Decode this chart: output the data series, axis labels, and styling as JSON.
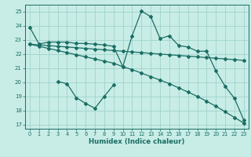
{
  "xlabel": "Humidex (Indice chaleur)",
  "bg_color": "#c8ece6",
  "grid_color": "#a0d4cc",
  "line_color": "#1a6e64",
  "xlim": [
    -0.5,
    23.5
  ],
  "ylim": [
    16.7,
    25.5
  ],
  "yticks": [
    17,
    18,
    19,
    20,
    21,
    22,
    23,
    24,
    25
  ],
  "xticks": [
    0,
    1,
    2,
    3,
    4,
    5,
    6,
    7,
    8,
    9,
    10,
    11,
    12,
    13,
    14,
    15,
    16,
    17,
    18,
    19,
    20,
    21,
    22,
    23
  ],
  "line1_x": [
    0,
    1,
    2,
    3,
    4,
    5,
    6,
    7,
    8,
    9,
    10,
    11,
    12,
    13,
    14,
    15,
    16,
    17,
    18,
    19,
    20,
    21,
    22,
    23
  ],
  "line1_y": [
    23.9,
    22.7,
    22.85,
    22.85,
    22.85,
    22.75,
    22.75,
    22.7,
    22.65,
    22.55,
    21.1,
    23.3,
    25.05,
    24.65,
    23.1,
    23.3,
    22.6,
    22.5,
    22.2,
    22.2,
    20.8,
    19.7,
    18.85,
    17.3
  ],
  "line2_x": [
    0,
    1,
    2,
    3,
    4,
    5,
    6,
    7,
    8,
    9,
    10,
    11,
    12,
    13,
    14,
    15,
    16,
    17,
    18,
    19,
    20,
    21,
    22,
    23
  ],
  "line2_y": [
    22.7,
    22.65,
    22.6,
    22.55,
    22.5,
    22.45,
    22.4,
    22.35,
    22.3,
    22.25,
    22.2,
    22.15,
    22.1,
    22.05,
    22.0,
    21.95,
    21.9,
    21.85,
    21.8,
    21.75,
    21.7,
    21.65,
    21.6,
    21.55
  ],
  "line3_x": [
    0,
    1,
    2,
    3,
    4,
    5,
    6,
    7,
    8,
    9,
    10,
    11,
    12,
    13,
    14,
    15,
    16,
    17,
    18,
    19,
    20,
    21,
    22,
    23
  ],
  "line3_y": [
    22.7,
    22.55,
    22.4,
    22.25,
    22.1,
    21.95,
    21.8,
    21.65,
    21.5,
    21.35,
    21.1,
    20.9,
    20.65,
    20.4,
    20.15,
    19.9,
    19.6,
    19.3,
    19.0,
    18.65,
    18.3,
    17.9,
    17.5,
    17.1
  ],
  "line4_x": [
    3,
    4,
    5,
    6,
    7,
    8,
    9
  ],
  "line4_y": [
    20.05,
    19.9,
    18.9,
    18.5,
    18.15,
    19.0,
    19.8
  ]
}
